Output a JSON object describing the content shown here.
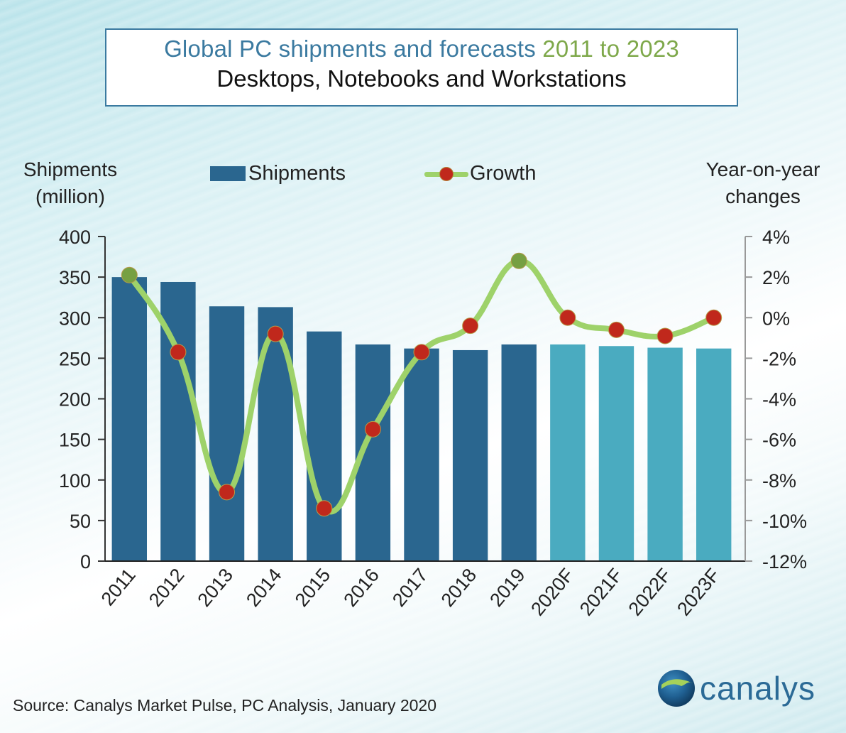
{
  "title": {
    "main": "Global PC shipments and forecasts",
    "years": "2011 to 2023",
    "subtitle": "Desktops, Notebooks and Workstations"
  },
  "axes": {
    "left_title_line1": "Shipments",
    "left_title_line2": "(million)",
    "right_title_line1": "Year-on-year",
    "right_title_line2": "changes"
  },
  "legend": {
    "shipments": "Shipments",
    "growth": "Growth"
  },
  "colors": {
    "actual_bar": "#2a668f",
    "forecast_bar": "#4aabc0",
    "growth_line": "#9ed26a",
    "marker_negative": "#c0281c",
    "marker_positive": "#76a043",
    "title_blue": "#3b7aa0",
    "title_green": "#7ea84a"
  },
  "chart_data": {
    "type": "bar",
    "title": "Global PC shipments and forecasts 2011 to 2023",
    "subtitle": "Desktops, Notebooks and Workstations",
    "xlabel": "",
    "ylabel": "Shipments (million)",
    "y2label": "Year-on-year changes",
    "categories": [
      "2011",
      "2012",
      "2013",
      "2014",
      "2015",
      "2016",
      "2017",
      "2018",
      "2019",
      "2020F",
      "2021F",
      "2022F",
      "2023F"
    ],
    "forecast_from_index": 9,
    "ylim": [
      0,
      400
    ],
    "yticks": [
      0,
      50,
      100,
      150,
      200,
      250,
      300,
      350,
      400
    ],
    "y2lim": [
      -12,
      4
    ],
    "y2ticks": [
      -12,
      -10,
      -8,
      -6,
      -4,
      -2,
      0,
      2,
      4
    ],
    "y2tick_labels": [
      "-12%",
      "-10%",
      "-8%",
      "-6%",
      "-4%",
      "-2%",
      "0%",
      "2%",
      "4%"
    ],
    "grid": false,
    "legend_position": "top",
    "series": [
      {
        "name": "Shipments",
        "type": "bar",
        "axis": "left",
        "values": [
          350,
          344,
          314,
          313,
          283,
          267,
          262,
          260,
          267,
          267,
          265,
          263,
          262
        ]
      },
      {
        "name": "Growth",
        "type": "line",
        "axis": "right",
        "unit": "%",
        "values": [
          2.1,
          -1.7,
          -8.6,
          -0.8,
          -9.4,
          -5.5,
          -1.7,
          -0.4,
          2.8,
          0.0,
          -0.6,
          -0.9,
          0.0
        ]
      }
    ]
  },
  "footer": {
    "source": "Source:  Canalys Market  Pulse, PC Analysis, January 2020",
    "logo_text": "canalys"
  }
}
